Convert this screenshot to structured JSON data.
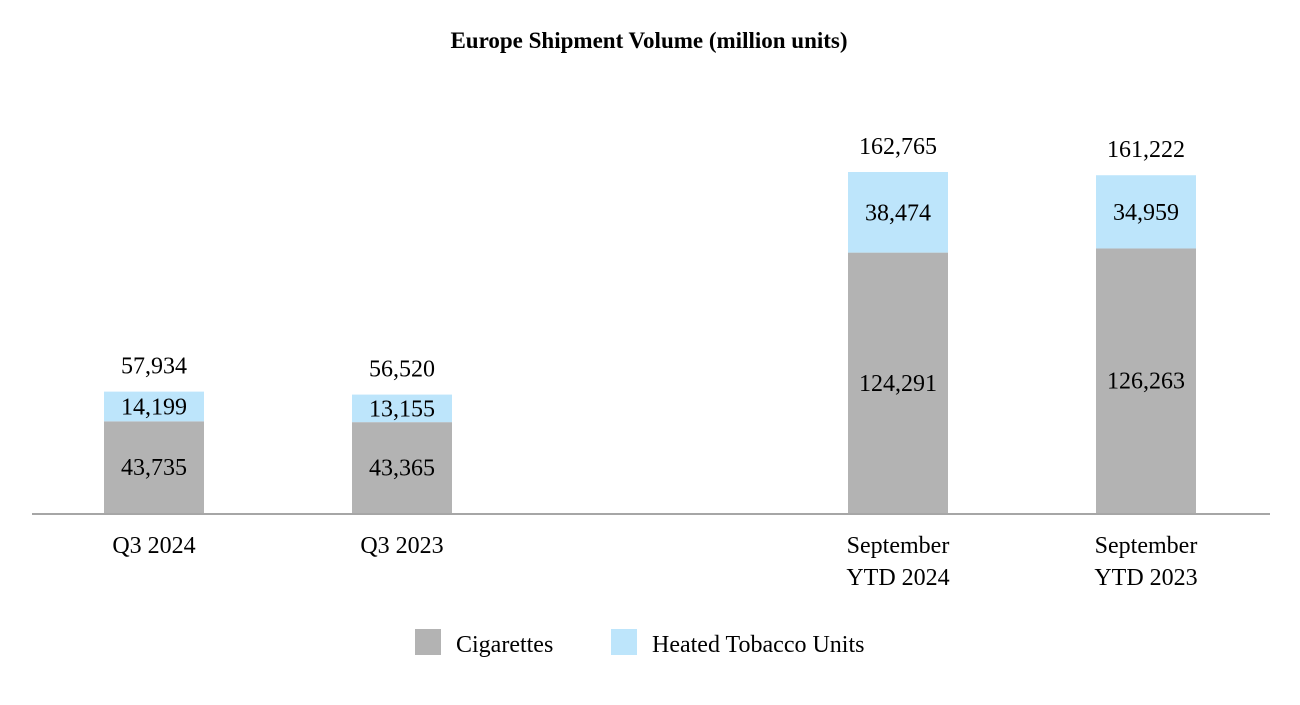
{
  "chart_data": {
    "type": "bar",
    "stacked": true,
    "title": "Europe Shipment Volume (million units)",
    "categories": [
      [
        "Q3 2024"
      ],
      [
        "Q3 2023"
      ],
      [
        "September",
        "YTD 2024"
      ],
      [
        "September",
        "YTD 2023"
      ]
    ],
    "series": [
      {
        "name": "Cigarettes",
        "color": "#b3b3b3",
        "values": [
          43735,
          43365,
          124291,
          126263
        ],
        "labels": [
          "43,735",
          "43,365",
          "124,291",
          "126,263"
        ]
      },
      {
        "name": "Heated Tobacco Units",
        "color": "#bde5fb",
        "values": [
          14199,
          13155,
          38474,
          34959
        ],
        "labels": [
          "14,199",
          "13,155",
          "38,474",
          "34,959"
        ]
      }
    ],
    "totals": [
      57934,
      56520,
      162765,
      161222
    ],
    "total_labels": [
      "57,934",
      "56,520",
      "162,765",
      "161,222"
    ],
    "ylim": [
      0,
      175000
    ],
    "grid": false,
    "legend_position": "bottom"
  }
}
